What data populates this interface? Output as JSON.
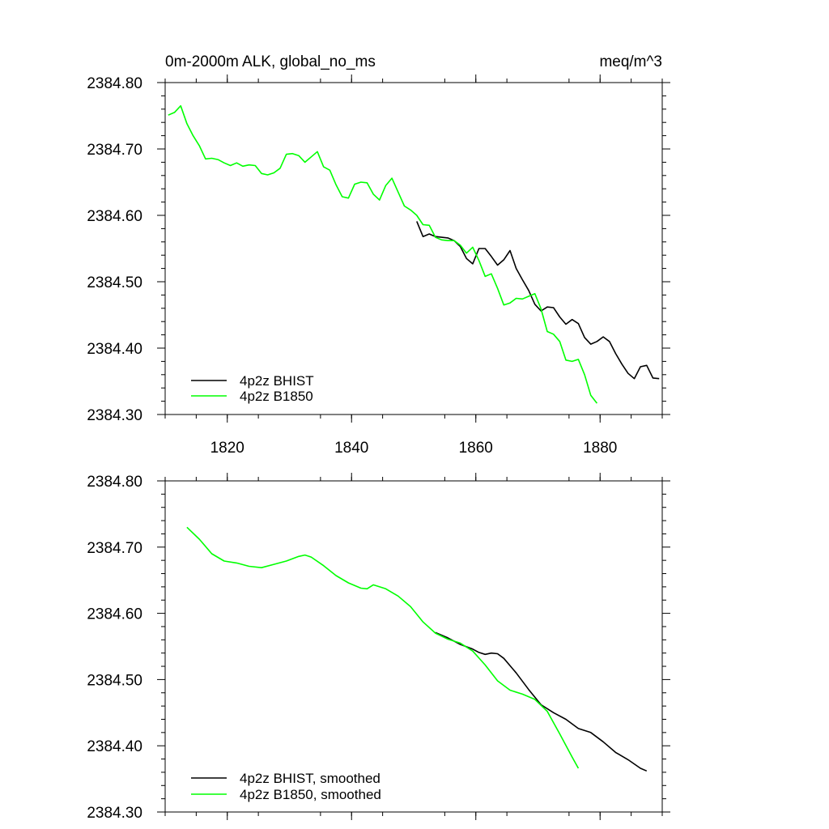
{
  "chart_data": [
    {
      "type": "line",
      "title": "0m-2000m ALK, global_no_ms",
      "units": "meq/m^3",
      "xlim": [
        1810,
        1890
      ],
      "ylim": [
        2384.3,
        2384.8
      ],
      "xticks": [
        1820,
        1840,
        1860,
        1880
      ],
      "xtick_labels": [
        "1820",
        "1840",
        "1860",
        "1880"
      ],
      "yticks": [
        2384.3,
        2384.4,
        2384.5,
        2384.6,
        2384.7,
        2384.8
      ],
      "ytick_labels": [
        "2384.30",
        "2384.40",
        "2384.50",
        "2384.60",
        "2384.70",
        "2384.80"
      ],
      "grid": false,
      "legend_position": "bottom-left",
      "series": [
        {
          "name": "4p2z BHIST",
          "color": "#000000",
          "x": [
            1850.5,
            1851.5,
            1852.5,
            1853.5,
            1854.5,
            1855.5,
            1856.5,
            1857.5,
            1858.5,
            1859.5,
            1860.5,
            1861.5,
            1862.5,
            1863.5,
            1864.5,
            1865.5,
            1866.5,
            1867.5,
            1868.5,
            1869.5,
            1870.5,
            1871.5,
            1872.5,
            1873.5,
            1874.5,
            1875.5,
            1876.5,
            1877.5,
            1878.5,
            1879.5,
            1880.5,
            1881.5,
            1882.5,
            1883.5,
            1884.5,
            1885.5,
            1886.5,
            1887.5,
            1888.5,
            1889.5
          ],
          "y": [
            2384.591,
            2384.568,
            2384.572,
            2384.568,
            2384.567,
            2384.566,
            2384.562,
            2384.553,
            2384.535,
            2384.527,
            2384.55,
            2384.55,
            2384.538,
            2384.525,
            2384.533,
            2384.547,
            2384.52,
            2384.503,
            2384.487,
            2384.466,
            2384.456,
            2384.462,
            2384.461,
            2384.447,
            2384.436,
            2384.443,
            2384.437,
            2384.416,
            2384.406,
            2384.41,
            2384.417,
            2384.41,
            2384.392,
            2384.376,
            2384.362,
            2384.354,
            2384.372,
            2384.374,
            2384.355,
            2384.354
          ]
        },
        {
          "name": "4p2z B1850",
          "color": "#00ff00",
          "x": [
            1810.5,
            1811.5,
            1812.5,
            1813.5,
            1814.5,
            1815.5,
            1816.5,
            1817.5,
            1818.5,
            1819.5,
            1820.5,
            1821.5,
            1822.5,
            1823.5,
            1824.5,
            1825.5,
            1826.5,
            1827.5,
            1828.5,
            1829.5,
            1830.5,
            1831.5,
            1832.5,
            1833.5,
            1834.5,
            1835.5,
            1836.5,
            1837.5,
            1838.5,
            1839.5,
            1840.5,
            1841.5,
            1842.5,
            1843.5,
            1844.5,
            1845.5,
            1846.5,
            1847.5,
            1848.5,
            1849.5,
            1850.5,
            1851.5,
            1852.5,
            1853.5,
            1854.5,
            1855.5,
            1856.5,
            1857.5,
            1858.5,
            1859.5,
            1860.5,
            1861.5,
            1862.5,
            1863.5,
            1864.5,
            1865.5,
            1866.5,
            1867.5,
            1868.5,
            1869.5,
            1870.5,
            1871.5,
            1872.5,
            1873.5,
            1874.5,
            1875.5,
            1876.5,
            1877.5,
            1878.5,
            1879.5
          ],
          "y": [
            2384.751,
            2384.755,
            2384.765,
            2384.738,
            2384.72,
            2384.705,
            2384.685,
            2384.686,
            2384.684,
            2384.679,
            2384.675,
            2384.679,
            2384.674,
            2384.676,
            2384.675,
            2384.663,
            2384.661,
            2384.664,
            2384.671,
            2384.692,
            2384.693,
            2384.69,
            2384.68,
            2384.688,
            2384.696,
            2384.673,
            2384.668,
            2384.646,
            2384.628,
            2384.626,
            2384.647,
            2384.65,
            2384.649,
            2384.632,
            2384.623,
            2384.645,
            2384.656,
            2384.635,
            2384.614,
            2384.608,
            2384.6,
            2384.586,
            2384.585,
            2384.567,
            2384.563,
            2384.562,
            2384.562,
            2384.555,
            2384.543,
            2384.552,
            2384.532,
            2384.508,
            2384.512,
            2384.49,
            2384.465,
            2384.468,
            2384.475,
            2384.474,
            2384.478,
            2384.482,
            2384.459,
            2384.425,
            2384.421,
            2384.41,
            2384.382,
            2384.38,
            2384.383,
            2384.36,
            2384.329,
            2384.317
          ]
        }
      ]
    },
    {
      "type": "line",
      "xlim": [
        1810,
        1890
      ],
      "ylim": [
        2384.3,
        2384.8
      ],
      "xticks": [
        1820,
        1840,
        1860,
        1880
      ],
      "yticks": [
        2384.3,
        2384.4,
        2384.5,
        2384.6,
        2384.7,
        2384.8
      ],
      "ytick_labels": [
        "2384.30",
        "2384.40",
        "2384.50",
        "2384.60",
        "2384.70",
        "2384.80"
      ],
      "grid": false,
      "legend_position": "bottom-left",
      "series": [
        {
          "name": "4p2z BHIST, smoothed",
          "color": "#000000",
          "x": [
            1853.5,
            1855.5,
            1857.5,
            1859.5,
            1860.5,
            1861.5,
            1862.5,
            1863.5,
            1864.5,
            1866.5,
            1868.5,
            1870.5,
            1872.5,
            1874.5,
            1876.5,
            1878.5,
            1880.5,
            1882.5,
            1884.5,
            1886.5,
            1887.5
          ],
          "y": [
            2384.571,
            2384.563,
            2384.553,
            2384.546,
            2384.541,
            2384.538,
            2384.54,
            2384.539,
            2384.532,
            2384.51,
            2384.485,
            2384.462,
            2384.45,
            2384.44,
            2384.426,
            2384.42,
            2384.406,
            2384.39,
            2384.379,
            2384.366,
            2384.362
          ]
        },
        {
          "name": "4p2z B1850, smoothed",
          "color": "#00ff00",
          "x": [
            1813.5,
            1815.5,
            1817.5,
            1819.5,
            1821.5,
            1823.5,
            1825.5,
            1827.5,
            1829.5,
            1831.5,
            1832.5,
            1833.5,
            1835.5,
            1837.5,
            1839.5,
            1841.5,
            1842.5,
            1843.5,
            1845.5,
            1847.5,
            1849.5,
            1851.5,
            1853.5,
            1855.5,
            1857.5,
            1859.5,
            1861.5,
            1863.5,
            1865.5,
            1867.5,
            1869.5,
            1871.5,
            1873.5,
            1875.5,
            1876.5
          ],
          "y": [
            2384.73,
            2384.712,
            2384.69,
            2384.679,
            2384.676,
            2384.671,
            2384.669,
            2384.674,
            2384.679,
            2384.686,
            2384.688,
            2384.685,
            2384.672,
            2384.657,
            2384.646,
            2384.638,
            2384.637,
            2384.643,
            2384.637,
            2384.626,
            2384.61,
            2384.587,
            2384.57,
            2384.561,
            2384.555,
            2384.543,
            2384.522,
            2384.498,
            2384.484,
            2384.478,
            2384.47,
            2384.452,
            2384.418,
            2384.383,
            2384.366
          ]
        }
      ]
    }
  ]
}
